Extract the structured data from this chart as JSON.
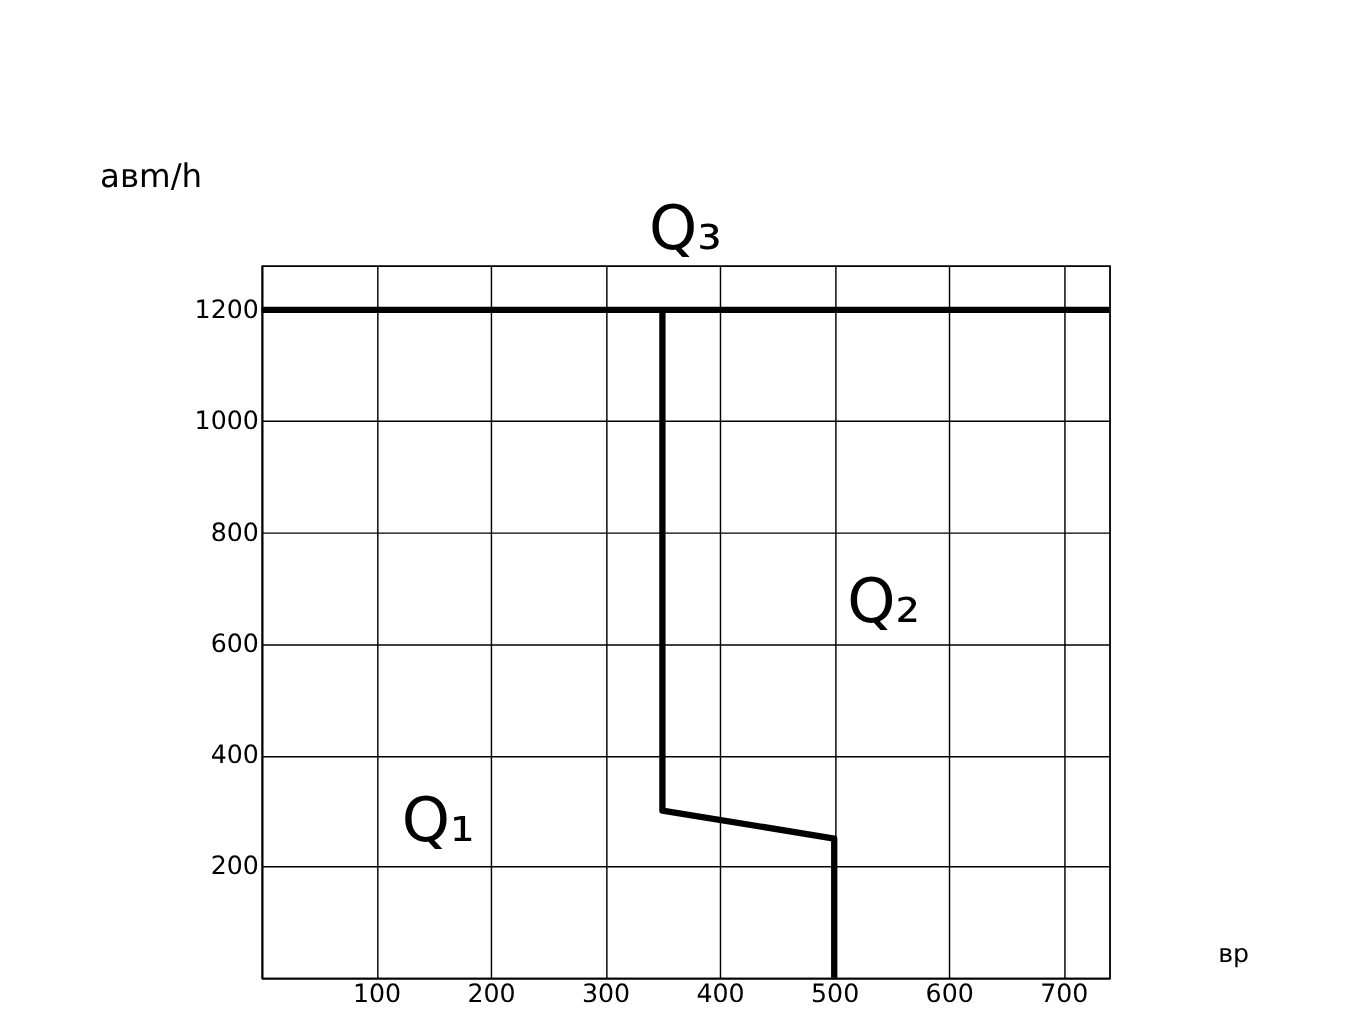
{
  "chart_data": {
    "type": "line",
    "xlabel": "вр",
    "ylabel": "aвm/h",
    "xlim": [
      0,
      740
    ],
    "ylim": [
      0,
      1280
    ],
    "xticks": [
      100,
      200,
      300,
      400,
      500,
      600,
      700
    ],
    "yticks": [
      200,
      400,
      600,
      800,
      1000,
      1200
    ],
    "series": [
      {
        "color": "#000000",
        "x": [
          0,
          740
        ],
        "values": [
          1200,
          1200
        ]
      },
      {
        "color": "#000000",
        "x": [
          350,
          350,
          500,
          500
        ],
        "values": [
          1200,
          300,
          250,
          0
        ]
      }
    ],
    "annotations": [
      "Q₃",
      "Q₂",
      "Q₁"
    ],
    "grid": true,
    "marker": "none",
    "line_style": "solid"
  }
}
